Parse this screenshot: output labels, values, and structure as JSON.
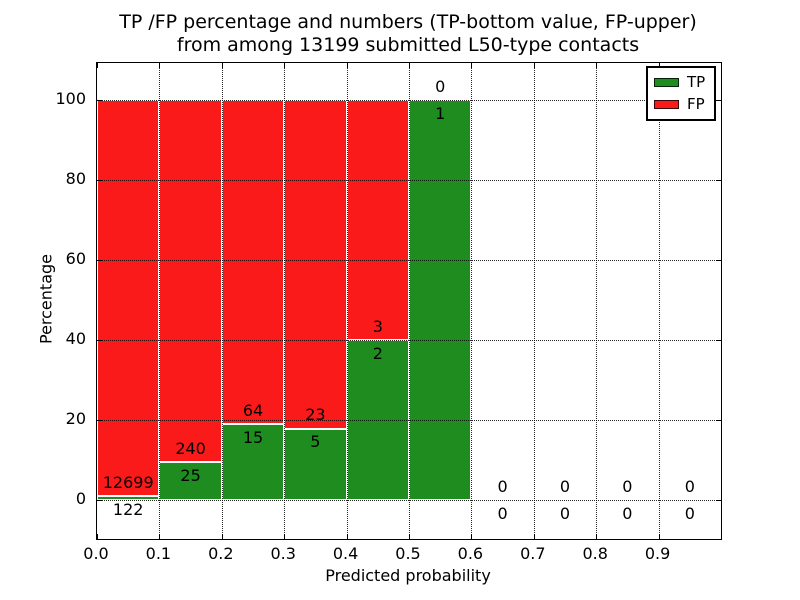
{
  "figure": {
    "title_line1": "TP /FP percentage and numbers (TP-bottom value, FP-upper)",
    "title_line2": "from among 13199 submitted L50-type contacts"
  },
  "colors": {
    "tp_green": "#1e8c1e",
    "fp_red": "#fa1a1a",
    "grid": "#000000",
    "background": "#ffffff"
  },
  "chart_data": {
    "type": "bar",
    "stacked": true,
    "unit": "percent",
    "title": "TP /FP percentage and numbers (TP-bottom value, FP-upper) from among 13199 submitted L50-type contacts",
    "total_submitted": 13199,
    "xlabel": "Predicted probability",
    "ylabel": "Percentage",
    "xlim": [
      0.0,
      1.0
    ],
    "ylim": [
      -9.75,
      109.25
    ],
    "x_tick_labels": [
      "0.0",
      "0.1",
      "0.2",
      "0.3",
      "0.4",
      "0.5",
      "0.6",
      "0.7",
      "0.8",
      "0.9"
    ],
    "y_ticks": [
      0,
      20,
      40,
      60,
      80,
      100
    ],
    "grid": true,
    "grid_style": "dotted",
    "bin_width": 0.1,
    "series_note": "Each bin stacked to 100%: TP bottom (green), FP top (red); annotations are raw counts (TP lower number, FP upper number)",
    "bins": [
      {
        "x_start": 0.0,
        "tp": 122,
        "fp": 12699
      },
      {
        "x_start": 0.1,
        "tp": 25,
        "fp": 240
      },
      {
        "x_start": 0.2,
        "tp": 15,
        "fp": 64
      },
      {
        "x_start": 0.3,
        "tp": 5,
        "fp": 23
      },
      {
        "x_start": 0.4,
        "tp": 2,
        "fp": 3
      },
      {
        "x_start": 0.5,
        "tp": 1,
        "fp": 0
      },
      {
        "x_start": 0.6,
        "tp": 0,
        "fp": 0
      },
      {
        "x_start": 0.7,
        "tp": 0,
        "fp": 0
      },
      {
        "x_start": 0.8,
        "tp": 0,
        "fp": 0
      },
      {
        "x_start": 0.9,
        "tp": 0,
        "fp": 0
      }
    ],
    "legend": {
      "position": "upper right",
      "entries": [
        {
          "label": "TP",
          "color": "#1e8c1e"
        },
        {
          "label": "FP",
          "color": "#fa1a1a"
        }
      ]
    }
  }
}
